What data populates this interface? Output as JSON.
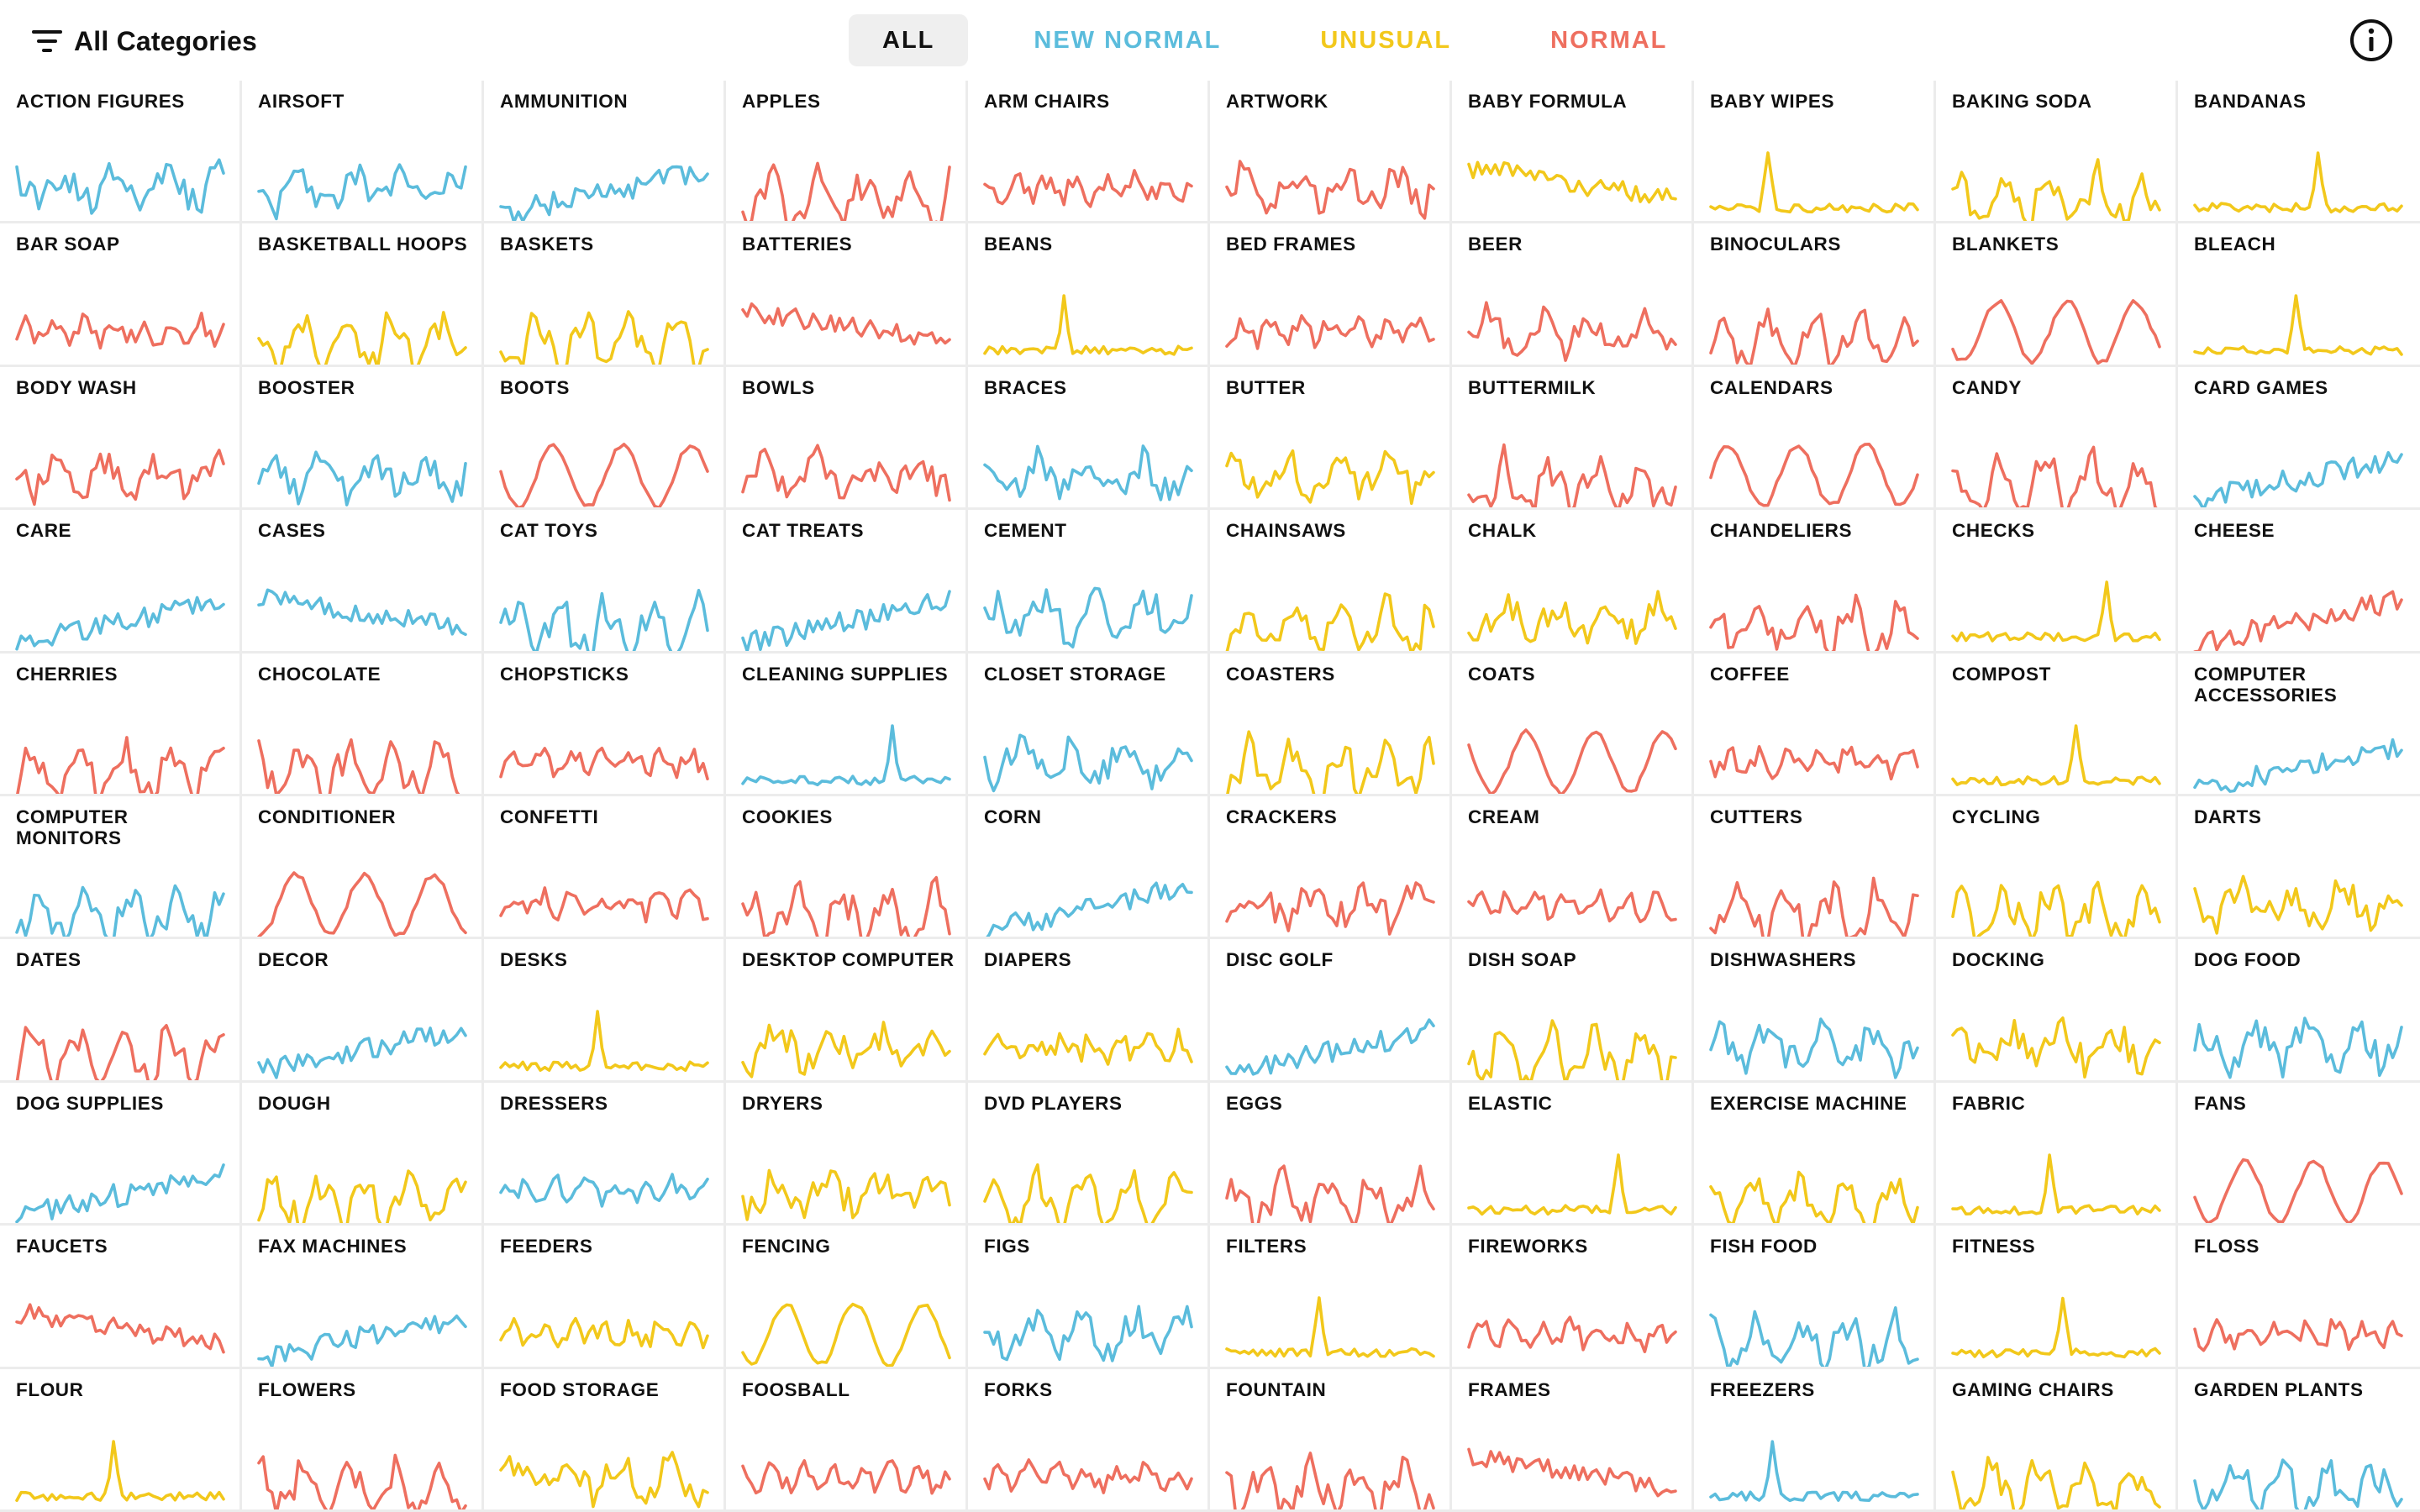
{
  "header": {
    "filter_label": "All Categories",
    "tabs": [
      {
        "label": "ALL",
        "color": "#111111",
        "active": true
      },
      {
        "label": "NEW NORMAL",
        "color": "#5bbcdc",
        "active": false
      },
      {
        "label": "UNUSUAL",
        "color": "#f2c81b",
        "active": false
      },
      {
        "label": "NORMAL",
        "color": "#ee6f5f",
        "active": false
      }
    ]
  },
  "colors": {
    "new_normal": "#5bbcdc",
    "unusual": "#f2c81b",
    "normal": "#ee6f5f"
  },
  "categories": [
    {
      "name": "ACTION FIGURES",
      "status": "new_normal",
      "pattern": "noisy"
    },
    {
      "name": "AIRSOFT",
      "status": "new_normal",
      "pattern": "noisy"
    },
    {
      "name": "AMMUNITION",
      "status": "new_normal",
      "pattern": "rise"
    },
    {
      "name": "APPLES",
      "status": "normal",
      "pattern": "peaks"
    },
    {
      "name": "ARM CHAIRS",
      "status": "normal",
      "pattern": "flatnoisy"
    },
    {
      "name": "ARTWORK",
      "status": "normal",
      "pattern": "noisy"
    },
    {
      "name": "BABY FORMULA",
      "status": "unusual",
      "pattern": "decline"
    },
    {
      "name": "BABY WIPES",
      "status": "unusual",
      "pattern": "spike"
    },
    {
      "name": "BAKING SODA",
      "status": "unusual",
      "pattern": "peaks"
    },
    {
      "name": "BANDANAS",
      "status": "unusual",
      "pattern": "spike"
    },
    {
      "name": "BAR SOAP",
      "status": "normal",
      "pattern": "flatnoisy"
    },
    {
      "name": "BASKETBALL HOOPS",
      "status": "unusual",
      "pattern": "peaks"
    },
    {
      "name": "BASKETS",
      "status": "unusual",
      "pattern": "peaks"
    },
    {
      "name": "BATTERIES",
      "status": "normal",
      "pattern": "decline"
    },
    {
      "name": "BEANS",
      "status": "unusual",
      "pattern": "spike"
    },
    {
      "name": "BED FRAMES",
      "status": "normal",
      "pattern": "flatnoisy"
    },
    {
      "name": "BEER",
      "status": "normal",
      "pattern": "noisy"
    },
    {
      "name": "BINOCULARS",
      "status": "normal",
      "pattern": "peaks"
    },
    {
      "name": "BLANKETS",
      "status": "normal",
      "pattern": "seasonal"
    },
    {
      "name": "BLEACH",
      "status": "unusual",
      "pattern": "spike"
    },
    {
      "name": "BODY WASH",
      "status": "normal",
      "pattern": "noisy"
    },
    {
      "name": "BOOSTER",
      "status": "new_normal",
      "pattern": "noisy"
    },
    {
      "name": "BOOTS",
      "status": "normal",
      "pattern": "seasonal"
    },
    {
      "name": "BOWLS",
      "status": "normal",
      "pattern": "noisy"
    },
    {
      "name": "BRACES",
      "status": "new_normal",
      "pattern": "noisy"
    },
    {
      "name": "BUTTER",
      "status": "unusual",
      "pattern": "noisy"
    },
    {
      "name": "BUTTERMILK",
      "status": "normal",
      "pattern": "peaks"
    },
    {
      "name": "CALENDARS",
      "status": "normal",
      "pattern": "seasonal"
    },
    {
      "name": "CANDY",
      "status": "normal",
      "pattern": "peaks"
    },
    {
      "name": "CARD GAMES",
      "status": "new_normal",
      "pattern": "rise"
    },
    {
      "name": "CARE",
      "status": "new_normal",
      "pattern": "rise"
    },
    {
      "name": "CASES",
      "status": "new_normal",
      "pattern": "decline"
    },
    {
      "name": "CAT TOYS",
      "status": "new_normal",
      "pattern": "peaks"
    },
    {
      "name": "CAT TREATS",
      "status": "new_normal",
      "pattern": "rise"
    },
    {
      "name": "CEMENT",
      "status": "new_normal",
      "pattern": "noisy"
    },
    {
      "name": "CHAINSAWS",
      "status": "unusual",
      "pattern": "peaks"
    },
    {
      "name": "CHALK",
      "status": "unusual",
      "pattern": "noisy"
    },
    {
      "name": "CHANDELIERS",
      "status": "normal",
      "pattern": "peaks"
    },
    {
      "name": "CHECKS",
      "status": "unusual",
      "pattern": "spike"
    },
    {
      "name": "CHEESE",
      "status": "normal",
      "pattern": "rise"
    },
    {
      "name": "CHERRIES",
      "status": "normal",
      "pattern": "peaks"
    },
    {
      "name": "CHOCOLATE",
      "status": "normal",
      "pattern": "peaks"
    },
    {
      "name": "CHOPSTICKS",
      "status": "normal",
      "pattern": "flatnoisy"
    },
    {
      "name": "CLEANING SUPPLIES",
      "status": "new_normal",
      "pattern": "spike"
    },
    {
      "name": "CLOSET STORAGE",
      "status": "new_normal",
      "pattern": "noisy"
    },
    {
      "name": "COASTERS",
      "status": "unusual",
      "pattern": "peaks"
    },
    {
      "name": "COATS",
      "status": "normal",
      "pattern": "seasonal"
    },
    {
      "name": "COFFEE",
      "status": "normal",
      "pattern": "flatnoisy"
    },
    {
      "name": "COMPOST",
      "status": "unusual",
      "pattern": "spike"
    },
    {
      "name": "COMPUTER\nACCESSORIES",
      "status": "new_normal",
      "pattern": "rise"
    },
    {
      "name": "COMPUTER\nMONITORS",
      "status": "new_normal",
      "pattern": "peaks"
    },
    {
      "name": "CONDITIONER",
      "status": "normal",
      "pattern": "seasonal"
    },
    {
      "name": "CONFETTI",
      "status": "normal",
      "pattern": "flatnoisy"
    },
    {
      "name": "COOKIES",
      "status": "normal",
      "pattern": "peaks"
    },
    {
      "name": "CORN",
      "status": "new_normal",
      "pattern": "rise"
    },
    {
      "name": "CRACKERS",
      "status": "normal",
      "pattern": "noisy"
    },
    {
      "name": "CREAM",
      "status": "normal",
      "pattern": "flatnoisy"
    },
    {
      "name": "CUTTERS",
      "status": "normal",
      "pattern": "peaks"
    },
    {
      "name": "CYCLING",
      "status": "unusual",
      "pattern": "peaks"
    },
    {
      "name": "DARTS",
      "status": "unusual",
      "pattern": "noisy"
    },
    {
      "name": "DATES",
      "status": "normal",
      "pattern": "peaks"
    },
    {
      "name": "DECOR",
      "status": "new_normal",
      "pattern": "rise"
    },
    {
      "name": "DESKS",
      "status": "unusual",
      "pattern": "spike"
    },
    {
      "name": "DESKTOP COMPUTER",
      "status": "unusual",
      "pattern": "noisy"
    },
    {
      "name": "DIAPERS",
      "status": "unusual",
      "pattern": "flatnoisy"
    },
    {
      "name": "DISC GOLF",
      "status": "new_normal",
      "pattern": "rise"
    },
    {
      "name": "DISH SOAP",
      "status": "unusual",
      "pattern": "peaks"
    },
    {
      "name": "DISHWASHERS",
      "status": "new_normal",
      "pattern": "noisy"
    },
    {
      "name": "DOCKING",
      "status": "unusual",
      "pattern": "noisy"
    },
    {
      "name": "DOG FOOD",
      "status": "new_normal",
      "pattern": "noisy"
    },
    {
      "name": "DOG SUPPLIES",
      "status": "new_normal",
      "pattern": "rise"
    },
    {
      "name": "DOUGH",
      "status": "unusual",
      "pattern": "peaks"
    },
    {
      "name": "DRESSERS",
      "status": "new_normal",
      "pattern": "flatnoisy"
    },
    {
      "name": "DRYERS",
      "status": "unusual",
      "pattern": "noisy"
    },
    {
      "name": "DVD PLAYERS",
      "status": "unusual",
      "pattern": "peaks"
    },
    {
      "name": "EGGS",
      "status": "normal",
      "pattern": "peaks"
    },
    {
      "name": "ELASTIC",
      "status": "unusual",
      "pattern": "spike"
    },
    {
      "name": "EXERCISE MACHINE",
      "status": "unusual",
      "pattern": "peaks"
    },
    {
      "name": "FABRIC",
      "status": "unusual",
      "pattern": "spike"
    },
    {
      "name": "FANS",
      "status": "normal",
      "pattern": "seasonal"
    },
    {
      "name": "FAUCETS",
      "status": "normal",
      "pattern": "decline"
    },
    {
      "name": "FAX MACHINES",
      "status": "new_normal",
      "pattern": "rise"
    },
    {
      "name": "FEEDERS",
      "status": "unusual",
      "pattern": "flatnoisy"
    },
    {
      "name": "FENCING",
      "status": "unusual",
      "pattern": "seasonal"
    },
    {
      "name": "FIGS",
      "status": "new_normal",
      "pattern": "noisy"
    },
    {
      "name": "FILTERS",
      "status": "unusual",
      "pattern": "spike"
    },
    {
      "name": "FIREWORKS",
      "status": "normal",
      "pattern": "flatnoisy"
    },
    {
      "name": "FISH FOOD",
      "status": "new_normal",
      "pattern": "peaks"
    },
    {
      "name": "FITNESS",
      "status": "unusual",
      "pattern": "spike"
    },
    {
      "name": "FLOSS",
      "status": "normal",
      "pattern": "flatnoisy"
    },
    {
      "name": "FLOUR",
      "status": "unusual",
      "pattern": "spike"
    },
    {
      "name": "FLOWERS",
      "status": "normal",
      "pattern": "peaks"
    },
    {
      "name": "FOOD STORAGE",
      "status": "unusual",
      "pattern": "noisy"
    },
    {
      "name": "FOOSBALL",
      "status": "normal",
      "pattern": "flatnoisy"
    },
    {
      "name": "FORKS",
      "status": "normal",
      "pattern": "flatnoisy"
    },
    {
      "name": "FOUNTAIN",
      "status": "normal",
      "pattern": "peaks"
    },
    {
      "name": "FRAMES",
      "status": "normal",
      "pattern": "decline"
    },
    {
      "name": "FREEZERS",
      "status": "new_normal",
      "pattern": "spike"
    },
    {
      "name": "GAMING CHAIRS",
      "status": "unusual",
      "pattern": "peaks"
    },
    {
      "name": "GARDEN PLANTS",
      "status": "new_normal",
      "pattern": "peaks"
    }
  ]
}
